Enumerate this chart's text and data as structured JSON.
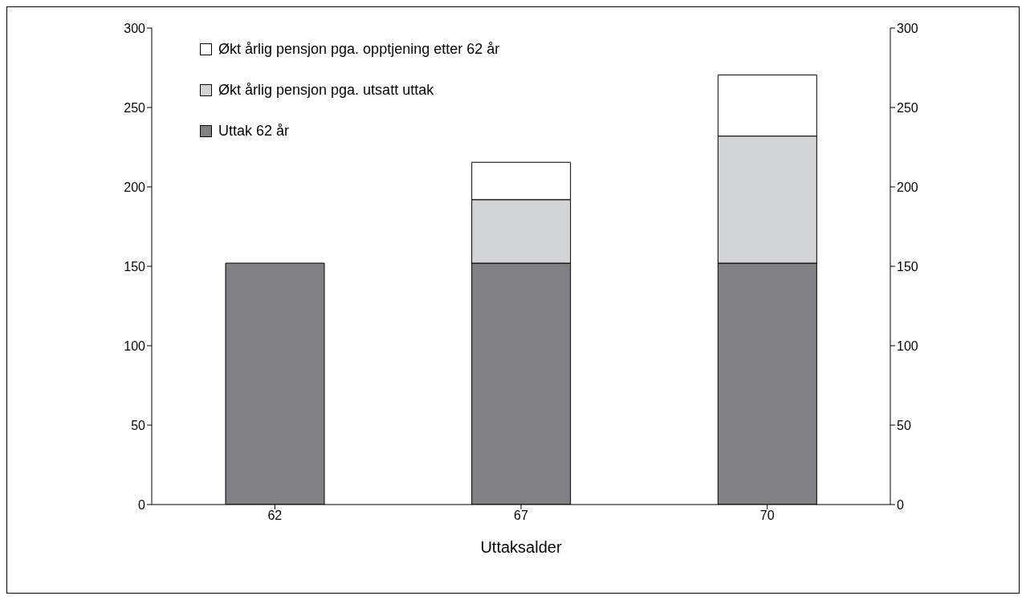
{
  "chart_data": {
    "type": "bar",
    "stacked": true,
    "xlabel": "Uttaksalder",
    "categories": [
      "62",
      "67",
      "70"
    ],
    "series": [
      {
        "name": "Uttak 62 år",
        "color": "#808085",
        "values": [
          152,
          152,
          152
        ]
      },
      {
        "name": "Økt årlig pensjon pga. utsatt uttak",
        "color": "#d3d4d6",
        "values": [
          0,
          40,
          80
        ]
      },
      {
        "name": "Økt årlig pensjon pga. opptjening etter 62 år",
        "color": "#ffffff",
        "values": [
          0,
          23.5,
          38.5
        ]
      }
    ],
    "ylim": [
      0,
      300
    ],
    "yticks": [
      0,
      50,
      100,
      150,
      200,
      250,
      300
    ],
    "y2lim": [
      0,
      300
    ],
    "y2ticks": [
      0,
      50,
      100,
      150,
      200,
      250,
      300
    ],
    "grid": false,
    "legend": "top left"
  }
}
